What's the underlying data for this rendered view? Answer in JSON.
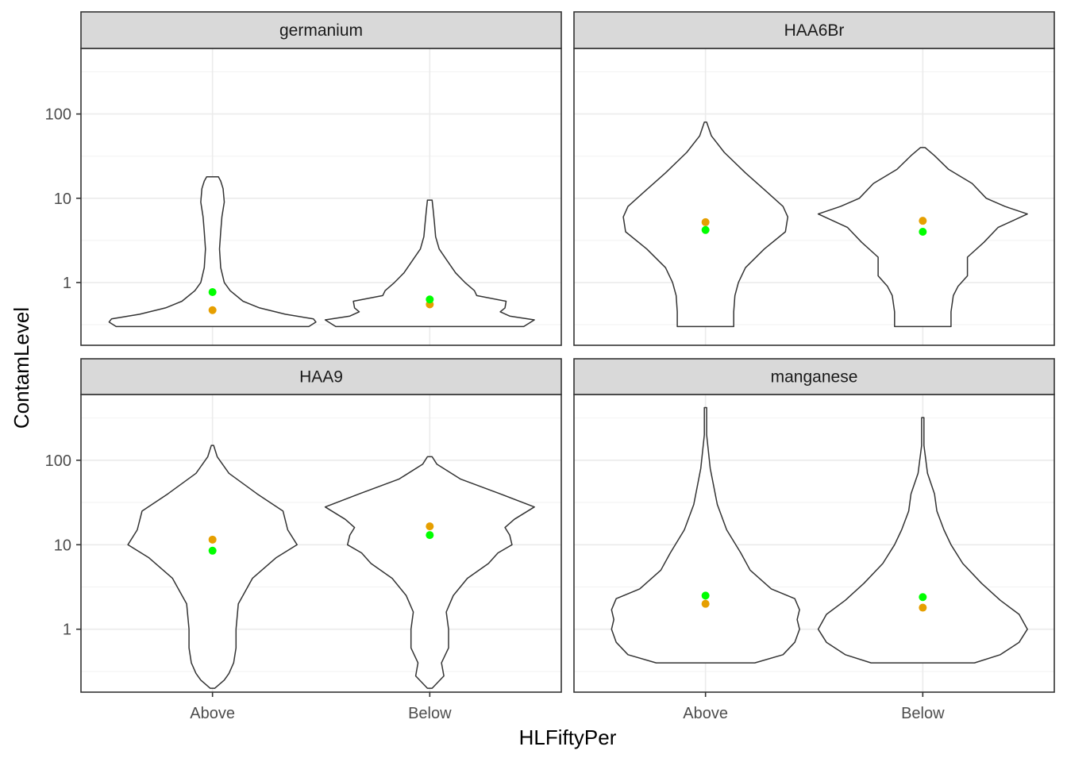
{
  "chart_data": {
    "type": "violin",
    "xlabel": "HLFiftyPer",
    "ylabel": "ContamLevel",
    "y_scale": "log10",
    "y_ticks": [
      {
        "value": 1,
        "label": "1"
      },
      {
        "value": 10,
        "label": "10"
      },
      {
        "value": 100,
        "label": "100"
      }
    ],
    "categories": [
      "Above",
      "Below"
    ],
    "point_colors": {
      "mean": "#E69F00",
      "median": "#00FF00"
    },
    "grid": true,
    "panels": [
      {
        "name": "germanium",
        "ylim": [
          0.18,
          600
        ],
        "violins": [
          {
            "category": "Above",
            "min": 0.3,
            "max": 18,
            "mean": 0.47,
            "median": 0.77,
            "profile": [
              [
                0.3,
                0.82
              ],
              [
                0.34,
                0.88
              ],
              [
                0.37,
                0.86
              ],
              [
                0.42,
                0.62
              ],
              [
                0.5,
                0.4
              ],
              [
                0.6,
                0.26
              ],
              [
                0.8,
                0.15
              ],
              [
                1.0,
                0.1
              ],
              [
                1.5,
                0.07
              ],
              [
                2.5,
                0.06
              ],
              [
                4,
                0.07
              ],
              [
                6,
                0.08
              ],
              [
                9,
                0.1
              ],
              [
                13,
                0.09
              ],
              [
                16,
                0.07
              ],
              [
                18,
                0.05
              ]
            ]
          },
          {
            "category": "Below",
            "min": 0.3,
            "max": 9.5,
            "mean": 0.55,
            "median": 0.63,
            "profile": [
              [
                0.3,
                0.8
              ],
              [
                0.36,
                0.89
              ],
              [
                0.4,
                0.68
              ],
              [
                0.45,
                0.6
              ],
              [
                0.5,
                0.64
              ],
              [
                0.6,
                0.65
              ],
              [
                0.7,
                0.4
              ],
              [
                0.8,
                0.38
              ],
              [
                1.0,
                0.3
              ],
              [
                1.3,
                0.22
              ],
              [
                1.8,
                0.15
              ],
              [
                2.5,
                0.08
              ],
              [
                3.5,
                0.05
              ],
              [
                5,
                0.04
              ],
              [
                7,
                0.03
              ],
              [
                9.5,
                0.02
              ]
            ]
          }
        ]
      },
      {
        "name": "HAA6Br",
        "ylim": [
          0.18,
          600
        ],
        "violins": [
          {
            "category": "Above",
            "min": 0.3,
            "max": 80,
            "mean": 5.2,
            "median": 4.2,
            "profile": [
              [
                0.3,
                0.24
              ],
              [
                0.45,
                0.24
              ],
              [
                0.7,
                0.25
              ],
              [
                1.0,
                0.28
              ],
              [
                1.5,
                0.34
              ],
              [
                2.5,
                0.5
              ],
              [
                4,
                0.68
              ],
              [
                6,
                0.7
              ],
              [
                8,
                0.66
              ],
              [
                12,
                0.52
              ],
              [
                20,
                0.34
              ],
              [
                35,
                0.16
              ],
              [
                55,
                0.05
              ],
              [
                80,
                0.01
              ]
            ]
          },
          {
            "category": "Below",
            "min": 0.3,
            "max": 40,
            "mean": 5.4,
            "median": 4.0,
            "profile": [
              [
                0.3,
                0.24
              ],
              [
                0.45,
                0.24
              ],
              [
                0.7,
                0.26
              ],
              [
                0.9,
                0.3
              ],
              [
                1.2,
                0.38
              ],
              [
                2,
                0.38
              ],
              [
                3,
                0.52
              ],
              [
                4.5,
                0.64
              ],
              [
                6.5,
                0.89
              ],
              [
                8,
                0.7
              ],
              [
                10,
                0.54
              ],
              [
                15,
                0.42
              ],
              [
                22,
                0.22
              ],
              [
                32,
                0.1
              ],
              [
                40,
                0.02
              ]
            ]
          }
        ]
      },
      {
        "name": "HAA9",
        "ylim": [
          0.18,
          600
        ],
        "violins": [
          {
            "category": "Above",
            "min": 0.2,
            "max": 150,
            "mean": 11.5,
            "median": 8.5,
            "profile": [
              [
                0.2,
                0.02
              ],
              [
                0.25,
                0.1
              ],
              [
                0.3,
                0.14
              ],
              [
                0.4,
                0.18
              ],
              [
                0.6,
                0.2
              ],
              [
                1,
                0.2
              ],
              [
                2,
                0.22
              ],
              [
                4,
                0.34
              ],
              [
                7,
                0.54
              ],
              [
                10,
                0.72
              ],
              [
                15,
                0.64
              ],
              [
                25,
                0.6
              ],
              [
                40,
                0.38
              ],
              [
                70,
                0.14
              ],
              [
                110,
                0.04
              ],
              [
                150,
                0.01
              ]
            ]
          },
          {
            "category": "Below",
            "min": 0.2,
            "max": 110,
            "mean": 16.5,
            "median": 13.0,
            "profile": [
              [
                0.2,
                0.02
              ],
              [
                0.28,
                0.12
              ],
              [
                0.4,
                0.1
              ],
              [
                0.6,
                0.16
              ],
              [
                1,
                0.16
              ],
              [
                1.6,
                0.14
              ],
              [
                2.5,
                0.2
              ],
              [
                4,
                0.32
              ],
              [
                6,
                0.5
              ],
              [
                8,
                0.58
              ],
              [
                10,
                0.7
              ],
              [
                13,
                0.68
              ],
              [
                16,
                0.64
              ],
              [
                20,
                0.72
              ],
              [
                28,
                0.89
              ],
              [
                40,
                0.6
              ],
              [
                60,
                0.26
              ],
              [
                90,
                0.06
              ],
              [
                110,
                0.02
              ]
            ]
          }
        ]
      },
      {
        "name": "manganese",
        "ylim": [
          0.18,
          600
        ],
        "violins": [
          {
            "category": "Above",
            "min": 0.4,
            "max": 420,
            "mean": 2.0,
            "median": 2.5,
            "profile": [
              [
                0.4,
                0.42
              ],
              [
                0.5,
                0.66
              ],
              [
                0.7,
                0.76
              ],
              [
                1.0,
                0.8
              ],
              [
                1.3,
                0.78
              ],
              [
                1.7,
                0.8
              ],
              [
                2.3,
                0.76
              ],
              [
                3,
                0.56
              ],
              [
                5,
                0.38
              ],
              [
                8,
                0.3
              ],
              [
                15,
                0.18
              ],
              [
                30,
                0.1
              ],
              [
                80,
                0.04
              ],
              [
                200,
                0.01
              ],
              [
                420,
                0.01
              ]
            ]
          },
          {
            "category": "Below",
            "min": 0.4,
            "max": 320,
            "mean": 1.8,
            "median": 2.4,
            "profile": [
              [
                0.4,
                0.44
              ],
              [
                0.5,
                0.66
              ],
              [
                0.7,
                0.82
              ],
              [
                1.0,
                0.89
              ],
              [
                1.5,
                0.82
              ],
              [
                2.2,
                0.66
              ],
              [
                3.5,
                0.5
              ],
              [
                6,
                0.34
              ],
              [
                10,
                0.24
              ],
              [
                15,
                0.18
              ],
              [
                25,
                0.12
              ],
              [
                40,
                0.1
              ],
              [
                70,
                0.04
              ],
              [
                150,
                0.01
              ],
              [
                320,
                0.01
              ]
            ]
          }
        ]
      }
    ]
  }
}
